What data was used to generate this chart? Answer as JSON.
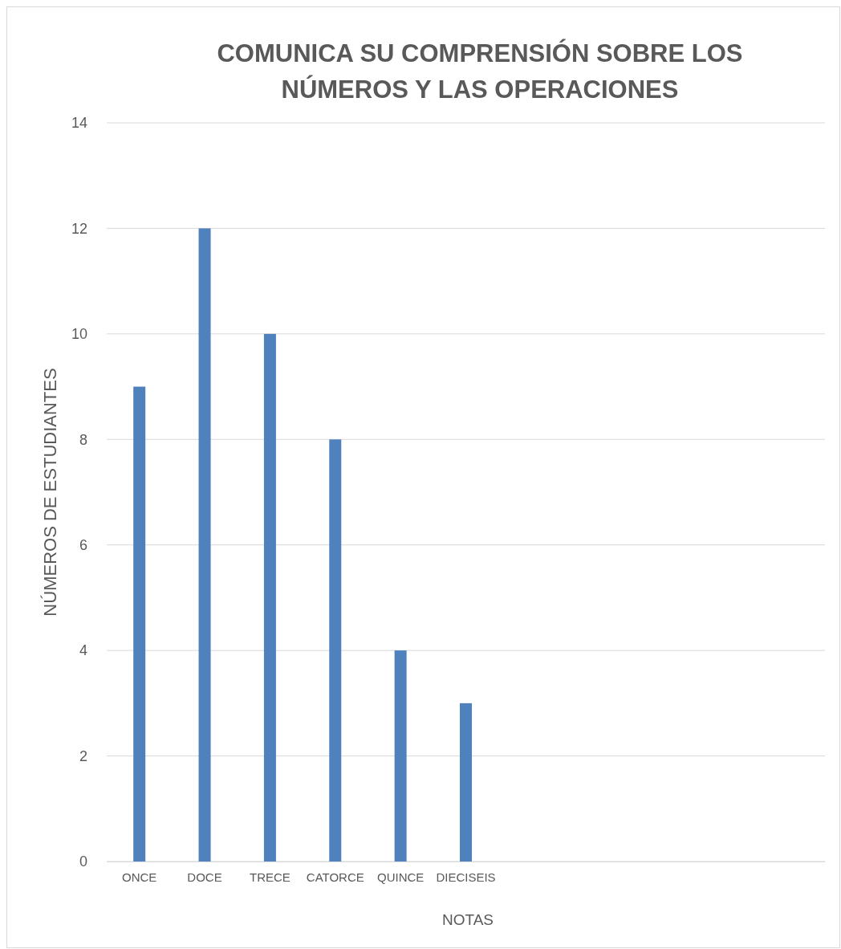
{
  "chart_data": {
    "type": "bar",
    "title": "COMUNICA SU COMPRENSIÓN SOBRE LOS NÚMEROS Y LAS OPERACIONES",
    "xlabel": "NOTAS",
    "ylabel": "NÚMEROS DE ESTUDIANTES",
    "categories": [
      "ONCE",
      "DOCE",
      "TRECE",
      "CATORCE",
      "QUINCE",
      "DIECISEIS",
      null,
      null,
      null,
      null,
      null
    ],
    "values": [
      9,
      12,
      10,
      8,
      4,
      3,
      null,
      null,
      null,
      null,
      null
    ],
    "color": "#4f81bd",
    "ylim": [
      0,
      14
    ],
    "yticks": [
      0,
      2,
      4,
      6,
      8,
      10,
      12,
      14
    ],
    "grid": "y"
  }
}
